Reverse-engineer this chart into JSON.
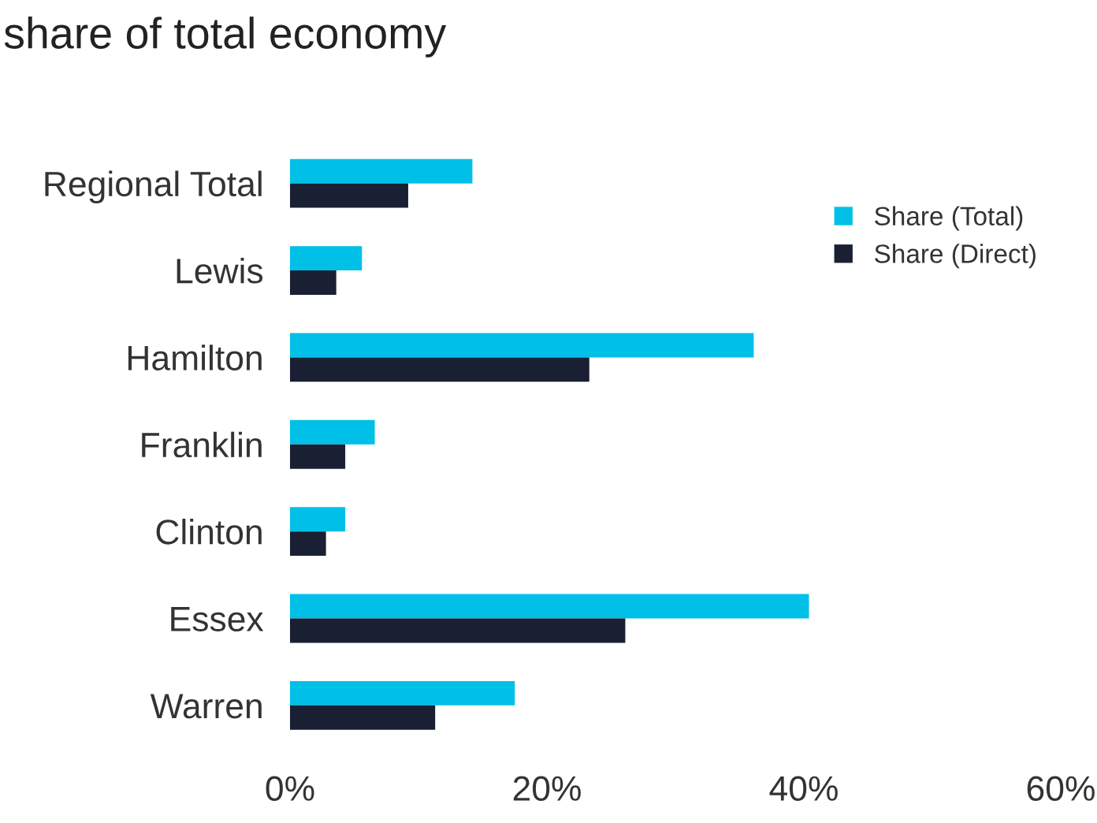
{
  "chart_data": {
    "type": "bar",
    "orientation": "horizontal",
    "title": "share of total economy",
    "categories": [
      "Regional Total",
      "Lewis",
      "Hamilton",
      "Franklin",
      "Clinton",
      "Essex",
      "Warren"
    ],
    "series": [
      {
        "name": "Share (Total)",
        "color": "#00c0e8",
        "values": [
          14.2,
          5.6,
          36.1,
          6.6,
          4.3,
          40.4,
          17.5
        ]
      },
      {
        "name": "Share (Direct)",
        "color": "#1a2033",
        "values": [
          9.2,
          3.6,
          23.3,
          4.3,
          2.8,
          26.1,
          11.3
        ]
      }
    ],
    "xlim": [
      0,
      60
    ],
    "xticks": [
      {
        "value": 0,
        "label": "0%"
      },
      {
        "value": 20,
        "label": "20%"
      },
      {
        "value": 40,
        "label": "40%"
      },
      {
        "value": 60,
        "label": "60%"
      }
    ],
    "grid": false,
    "legend": "top right"
  }
}
